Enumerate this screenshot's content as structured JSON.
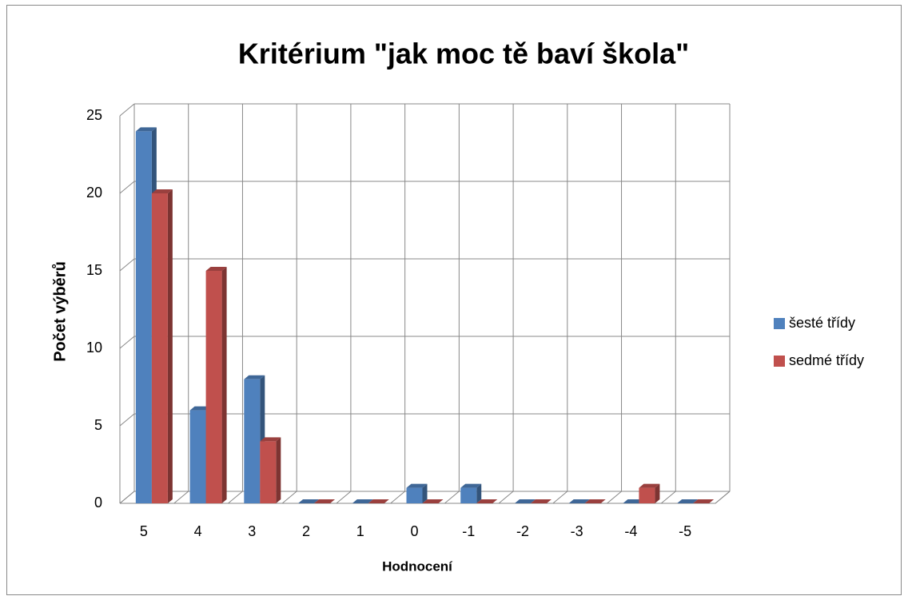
{
  "chart_data": {
    "type": "bar3d",
    "title": "Kritérium \"jak moc tě baví škola\"",
    "x_label": "Hodnocení",
    "y_label": "Počet výběrů",
    "categories": [
      "5",
      "4",
      "3",
      "2",
      "1",
      "0",
      "-1",
      "-2",
      "-3",
      "-4",
      "-5"
    ],
    "series": [
      {
        "name": "šesté třídy",
        "color": "#4f81bd",
        "values": [
          24,
          6,
          8,
          0,
          0,
          1,
          1,
          0,
          0,
          0,
          0
        ]
      },
      {
        "name": "sedmé třídy",
        "color": "#c0504d",
        "values": [
          20,
          15,
          4,
          0,
          0,
          0,
          0,
          0,
          0,
          1,
          0
        ]
      }
    ],
    "ylim": [
      0,
      25
    ],
    "yticks": [
      0,
      5,
      10,
      15,
      20,
      25
    ],
    "grid": true,
    "legend": "right"
  }
}
